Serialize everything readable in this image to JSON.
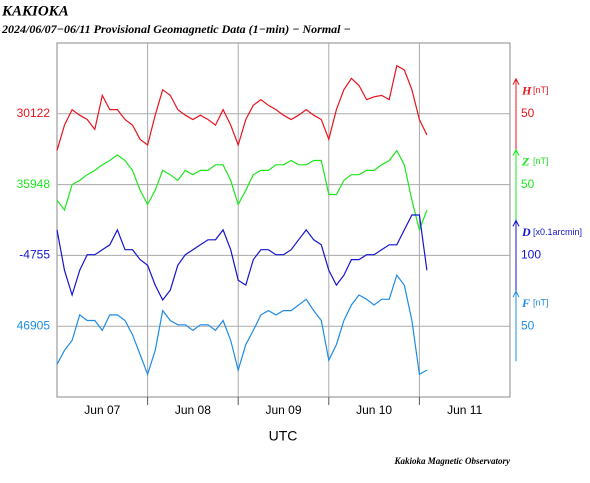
{
  "chart_data": {
    "type": "line",
    "title": "KAKIOKA",
    "subtitle": "2024/06/07−06/11  Provisional Geomagnetic Data (1−min)  − Normal −",
    "xlabel": "UTC",
    "credit": "Kakioka Magnetic Observatory",
    "x": [
      0,
      2,
      4,
      6,
      8,
      10,
      12,
      14,
      16,
      18,
      20,
      22,
      24,
      26,
      28,
      30,
      32,
      34,
      36,
      38,
      40,
      42,
      44,
      46,
      48,
      50,
      52,
      54,
      56,
      58,
      60,
      62,
      64,
      66,
      68,
      70,
      72,
      74,
      76,
      78,
      80,
      82,
      84,
      86,
      88,
      90,
      92,
      94,
      96,
      98
    ],
    "xlim": [
      0,
      120
    ],
    "xticks": [
      {
        "value": 12,
        "label": "Jun 07"
      },
      {
        "value": 36,
        "label": "Jun 08"
      },
      {
        "value": 60,
        "label": "Jun 09"
      },
      {
        "value": 84,
        "label": "Jun 10"
      },
      {
        "value": 108,
        "label": "Jun 11"
      }
    ],
    "xgrid": [
      24,
      48,
      72,
      96
    ],
    "grid": true,
    "series": [
      {
        "name": "H",
        "unit": "[nT]",
        "color": "#e8141e",
        "ylim": [
          29922,
          30172
        ],
        "yticks": [
          30122
        ],
        "scale": 50,
        "values": [
          30096,
          30114,
          30125,
          30121,
          30118,
          30111,
          30135,
          30125,
          30125,
          30118,
          30114,
          30104,
          30100,
          30121,
          30139,
          30135,
          30125,
          30121,
          30118,
          30121,
          30118,
          30114,
          30125,
          30114,
          30100,
          30118,
          30128,
          30132,
          30128,
          30125,
          30121,
          30118,
          30121,
          30125,
          30121,
          30118,
          30104,
          30125,
          30139,
          30147,
          30142,
          30132,
          30134,
          30135,
          30132,
          30156,
          30153,
          30139,
          30118,
          30107
        ]
      },
      {
        "name": "Z",
        "unit": "[nT]",
        "color": "#1ee61e",
        "ylim": [
          35798,
          36048
        ],
        "yticks": [
          35948
        ],
        "scale": 50,
        "values": [
          35937,
          35930,
          35948,
          35951,
          35955,
          35958,
          35962,
          35965,
          35969,
          35965,
          35958,
          35944,
          35934,
          35944,
          35958,
          35955,
          35951,
          35958,
          35955,
          35958,
          35958,
          35962,
          35962,
          35951,
          35934,
          35944,
          35955,
          35958,
          35958,
          35962,
          35962,
          35965,
          35962,
          35962,
          35965,
          35965,
          35941,
          35941,
          35951,
          35955,
          35955,
          35958,
          35958,
          35962,
          35965,
          35972,
          35962,
          35937,
          35916,
          35930
        ]
      },
      {
        "name": "D",
        "unit": "[x0.1arcmin]",
        "color": "#1414d2",
        "ylim": [
          -4955,
          -4455
        ],
        "yticks": [
          -4755
        ],
        "scale": 100,
        "values": [
          -4719,
          -4776,
          -4811,
          -4776,
          -4754,
          -4754,
          -4747,
          -4740,
          -4719,
          -4747,
          -4747,
          -4761,
          -4769,
          -4797,
          -4818,
          -4804,
          -4769,
          -4754,
          -4747,
          -4740,
          -4733,
          -4733,
          -4719,
          -4747,
          -4790,
          -4797,
          -4761,
          -4747,
          -4747,
          -4754,
          -4754,
          -4747,
          -4733,
          -4719,
          -4733,
          -4740,
          -4776,
          -4797,
          -4783,
          -4761,
          -4761,
          -4754,
          -4754,
          -4747,
          -4740,
          -4740,
          -4719,
          -4698,
          -4698,
          -4776
        ]
      },
      {
        "name": "F",
        "unit": "[nT]",
        "color": "#1e8ce6",
        "ylim": [
          46855,
          47105
        ],
        "yticks": [
          46905
        ],
        "scale": 50,
        "values": [
          46878,
          46888,
          46895,
          46913,
          46909,
          46909,
          46902,
          46913,
          46913,
          46909,
          46899,
          46885,
          46871,
          46888,
          46916,
          46909,
          46906,
          46906,
          46902,
          46906,
          46906,
          46902,
          46909,
          46895,
          46874,
          46892,
          46902,
          46913,
          46916,
          46913,
          46916,
          46916,
          46920,
          46924,
          46916,
          46909,
          46881,
          46892,
          46909,
          46920,
          46927,
          46924,
          46920,
          46924,
          46924,
          46941,
          46934,
          46909,
          46871,
          46874
        ]
      }
    ]
  }
}
